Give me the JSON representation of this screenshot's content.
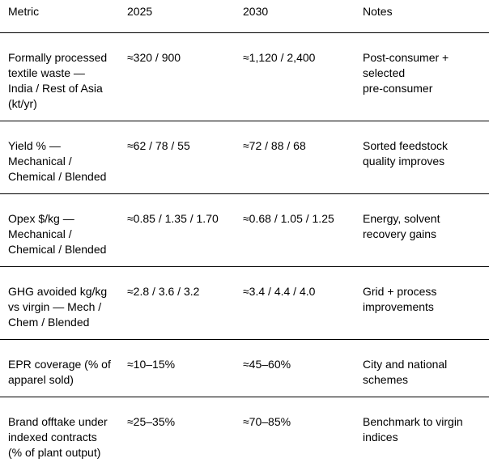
{
  "table": {
    "columns": [
      "Metric",
      "2025",
      "2030",
      "Notes"
    ],
    "row_field_order": [
      "metric",
      "value_2025",
      "value_2030",
      "notes"
    ],
    "rows": [
      {
        "metric": "Formally processed\ntextile waste —\nIndia / Rest of Asia\n(kt/yr)",
        "value_2025": "≈320 / 900",
        "value_2030": "≈1,120 / 2,400",
        "notes": "Post-consumer +\nselected\npre-consumer"
      },
      {
        "metric": "Yield % —\nMechanical /\nChemical / Blended",
        "value_2025": "≈62 / 78 / 55",
        "value_2030": "≈72 / 88 / 68",
        "notes": "Sorted feedstock\nquality improves"
      },
      {
        "metric": "Opex $/kg —\nMechanical /\nChemical / Blended",
        "value_2025": "≈0.85 / 1.35 / 1.70",
        "value_2030": "≈0.68 / 1.05 / 1.25",
        "notes": "Energy, solvent\nrecovery gains"
      },
      {
        "metric": "GHG avoided kg/kg\nvs virgin — Mech /\nChem / Blended",
        "value_2025": "≈2.8 / 3.6 / 3.2",
        "value_2030": "≈3.4 / 4.4 / 4.0",
        "notes": "Grid + process\nimprovements"
      },
      {
        "metric": "EPR coverage (% of\napparel sold)",
        "value_2025": "≈10–15%",
        "value_2030": "≈45–60%",
        "notes": "City and national\nschemes"
      },
      {
        "metric": "Brand offtake under\nindexed contracts\n(% of plant output)",
        "value_2025": "≈25–35%",
        "value_2030": "≈70–85%",
        "notes": "Benchmark to virgin\nindices"
      }
    ],
    "colors": {
      "text": "#000000",
      "rule": "#000000",
      "background": "#ffffff"
    }
  }
}
